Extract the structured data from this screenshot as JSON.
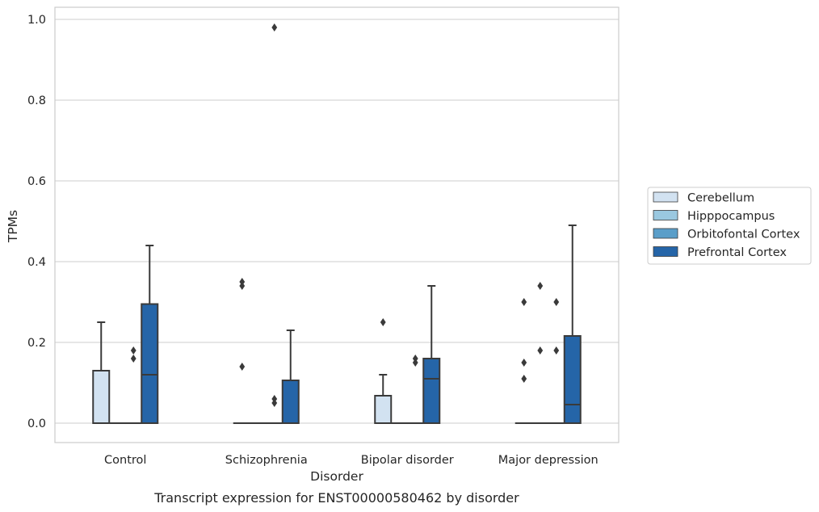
{
  "chart_data": {
    "type": "box",
    "caption": "Transcript expression for ENST00000580462 by disorder",
    "xlabel": "Disorder",
    "ylabel": "TPMs",
    "ylim": [
      -0.045,
      1.03
    ],
    "yticks": [
      "0.0",
      "0.2",
      "0.4",
      "0.6",
      "0.8",
      "1.0"
    ],
    "grid": true,
    "legend_position": "right",
    "categories": [
      "Control",
      "Schizophrenia",
      "Bipolar disorder",
      "Major depression"
    ],
    "series": [
      {
        "name": "Cerebellum",
        "color": "#d2e2f1",
        "boxes": [
          {
            "q1": 0,
            "median": 0,
            "q3": 0.13,
            "whisker_low": 0,
            "whisker_high": 0.25,
            "outliers": []
          },
          {
            "q1": 0,
            "median": 0,
            "q3": 0,
            "whisker_low": 0,
            "whisker_high": 0,
            "outliers": [
              0.35,
              0.34,
              0.14
            ]
          },
          {
            "q1": 0,
            "median": 0,
            "q3": 0.068,
            "whisker_low": 0,
            "whisker_high": 0.12,
            "outliers": [
              0.25
            ]
          },
          {
            "q1": 0,
            "median": 0,
            "q3": 0,
            "whisker_low": 0,
            "whisker_high": 0,
            "outliers": [
              0.3,
              0.15,
              0.11
            ]
          }
        ]
      },
      {
        "name": "Hipppocampus",
        "color": "#9ac8e0",
        "boxes": [
          {
            "q1": 0,
            "median": 0,
            "q3": 0,
            "whisker_low": 0,
            "whisker_high": 0,
            "outliers": []
          },
          {
            "q1": 0,
            "median": 0,
            "q3": 0,
            "whisker_low": 0,
            "whisker_high": 0,
            "outliers": []
          },
          {
            "q1": 0,
            "median": 0,
            "q3": 0,
            "whisker_low": 0,
            "whisker_high": 0,
            "outliers": []
          },
          {
            "q1": 0,
            "median": 0,
            "q3": 0,
            "whisker_low": 0,
            "whisker_high": 0,
            "outliers": [
              0.34,
              0.18
            ]
          }
        ]
      },
      {
        "name": "Orbitofontal Cortex",
        "color": "#5a9ec9",
        "boxes": [
          {
            "q1": 0,
            "median": 0,
            "q3": 0,
            "whisker_low": 0,
            "whisker_high": 0,
            "outliers": [
              0.18,
              0.16
            ]
          },
          {
            "q1": 0,
            "median": 0,
            "q3": 0,
            "whisker_low": 0,
            "whisker_high": 0,
            "outliers": [
              0.98,
              0.06,
              0.05
            ]
          },
          {
            "q1": 0,
            "median": 0,
            "q3": 0,
            "whisker_low": 0,
            "whisker_high": 0,
            "outliers": [
              0.16,
              0.15
            ]
          },
          {
            "q1": 0,
            "median": 0,
            "q3": 0,
            "whisker_low": 0,
            "whisker_high": 0,
            "outliers": [
              0.3,
              0.18
            ]
          }
        ]
      },
      {
        "name": "Prefrontal Cortex",
        "color": "#2565a8",
        "boxes": [
          {
            "q1": 0,
            "median": 0.12,
            "q3": 0.295,
            "whisker_low": 0,
            "whisker_high": 0.44,
            "outliers": []
          },
          {
            "q1": 0,
            "median": 0,
            "q3": 0.106,
            "whisker_low": 0,
            "whisker_high": 0.23,
            "outliers": []
          },
          {
            "q1": 0,
            "median": 0.11,
            "q3": 0.16,
            "whisker_low": 0,
            "whisker_high": 0.34,
            "outliers": []
          },
          {
            "q1": 0,
            "median": 0.046,
            "q3": 0.216,
            "whisker_low": 0,
            "whisker_high": 0.49,
            "outliers": []
          }
        ]
      }
    ]
  }
}
